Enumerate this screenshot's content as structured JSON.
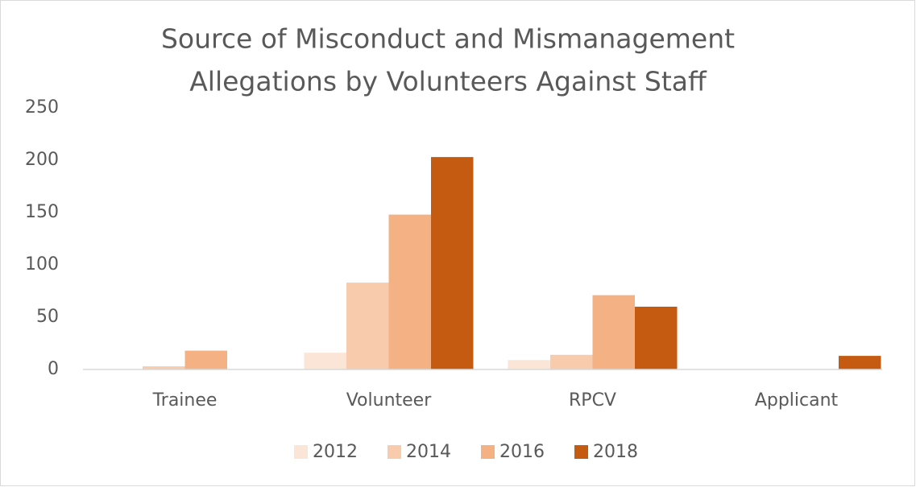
{
  "chart_data": {
    "type": "bar",
    "title": [
      "Source of Misconduct and Mismanagement",
      "Allegations by Volunteers Against Staff"
    ],
    "categories": [
      "Trainee",
      "Volunteer",
      "RPCV",
      "Applicant"
    ],
    "series": [
      {
        "name": "2012",
        "color": "#fbe5d6",
        "values": [
          0,
          16,
          9,
          0
        ]
      },
      {
        "name": "2014",
        "color": "#f8cbad",
        "values": [
          3,
          83,
          14,
          0
        ]
      },
      {
        "name": "2016",
        "color": "#f4b183",
        "values": [
          18,
          148,
          71,
          0
        ]
      },
      {
        "name": "2018",
        "color": "#c55a11",
        "values": [
          0,
          203,
          60,
          13
        ]
      }
    ],
    "ylim": [
      0,
      250
    ],
    "yticks": [
      0,
      50,
      100,
      150,
      200,
      250
    ],
    "grid": false,
    "legend": "bottom"
  }
}
